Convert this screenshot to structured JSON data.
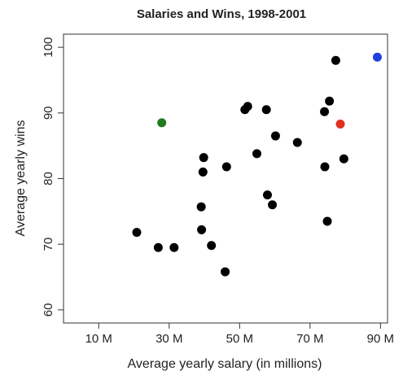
{
  "chart_data": {
    "type": "scatter",
    "title": "Salaries and Wins, 1998-2001",
    "xlabel": "Average yearly salary (in millions)",
    "ylabel": "Average yearly wins",
    "xlim": [
      0,
      92
    ],
    "ylim": [
      58,
      102
    ],
    "grid": false,
    "legend": "none",
    "x_ticks": [
      {
        "value": 10,
        "label": "10 M"
      },
      {
        "value": 30,
        "label": "30 M"
      },
      {
        "value": 50,
        "label": "50 M"
      },
      {
        "value": 70,
        "label": "70 M"
      },
      {
        "value": 90,
        "label": "90 M"
      }
    ],
    "y_ticks": [
      {
        "value": 60,
        "label": "60"
      },
      {
        "value": 70,
        "label": "70"
      },
      {
        "value": 80,
        "label": "80"
      },
      {
        "value": 90,
        "label": "90"
      },
      {
        "value": 100,
        "label": "100"
      }
    ],
    "colors": {
      "default": "#000000",
      "green": "#1e7b1e",
      "red": "#e0301e",
      "blue": "#1f3fe0"
    },
    "points": [
      {
        "x": 20.8,
        "y": 71.8,
        "color": "default"
      },
      {
        "x": 26.9,
        "y": 69.5,
        "color": "default"
      },
      {
        "x": 31.4,
        "y": 69.5,
        "color": "default"
      },
      {
        "x": 27.9,
        "y": 88.5,
        "color": "green"
      },
      {
        "x": 39.1,
        "y": 75.7,
        "color": "default"
      },
      {
        "x": 39.2,
        "y": 72.2,
        "color": "default"
      },
      {
        "x": 39.6,
        "y": 81.0,
        "color": "default"
      },
      {
        "x": 39.8,
        "y": 83.2,
        "color": "default"
      },
      {
        "x": 42.0,
        "y": 69.8,
        "color": "default"
      },
      {
        "x": 45.9,
        "y": 65.8,
        "color": "default"
      },
      {
        "x": 46.3,
        "y": 81.8,
        "color": "default"
      },
      {
        "x": 51.5,
        "y": 90.5,
        "color": "default"
      },
      {
        "x": 52.3,
        "y": 91.0,
        "color": "default"
      },
      {
        "x": 54.9,
        "y": 83.8,
        "color": "default"
      },
      {
        "x": 57.6,
        "y": 90.5,
        "color": "default"
      },
      {
        "x": 57.9,
        "y": 77.5,
        "color": "default"
      },
      {
        "x": 59.3,
        "y": 76.0,
        "color": "default"
      },
      {
        "x": 60.2,
        "y": 86.5,
        "color": "default"
      },
      {
        "x": 66.4,
        "y": 85.5,
        "color": "default"
      },
      {
        "x": 74.1,
        "y": 90.2,
        "color": "default"
      },
      {
        "x": 74.2,
        "y": 81.8,
        "color": "default"
      },
      {
        "x": 74.9,
        "y": 73.5,
        "color": "default"
      },
      {
        "x": 75.5,
        "y": 91.8,
        "color": "default"
      },
      {
        "x": 77.3,
        "y": 98.0,
        "color": "default"
      },
      {
        "x": 78.6,
        "y": 88.3,
        "color": "red"
      },
      {
        "x": 79.6,
        "y": 83.0,
        "color": "default"
      },
      {
        "x": 89.1,
        "y": 98.5,
        "color": "blue"
      }
    ]
  }
}
